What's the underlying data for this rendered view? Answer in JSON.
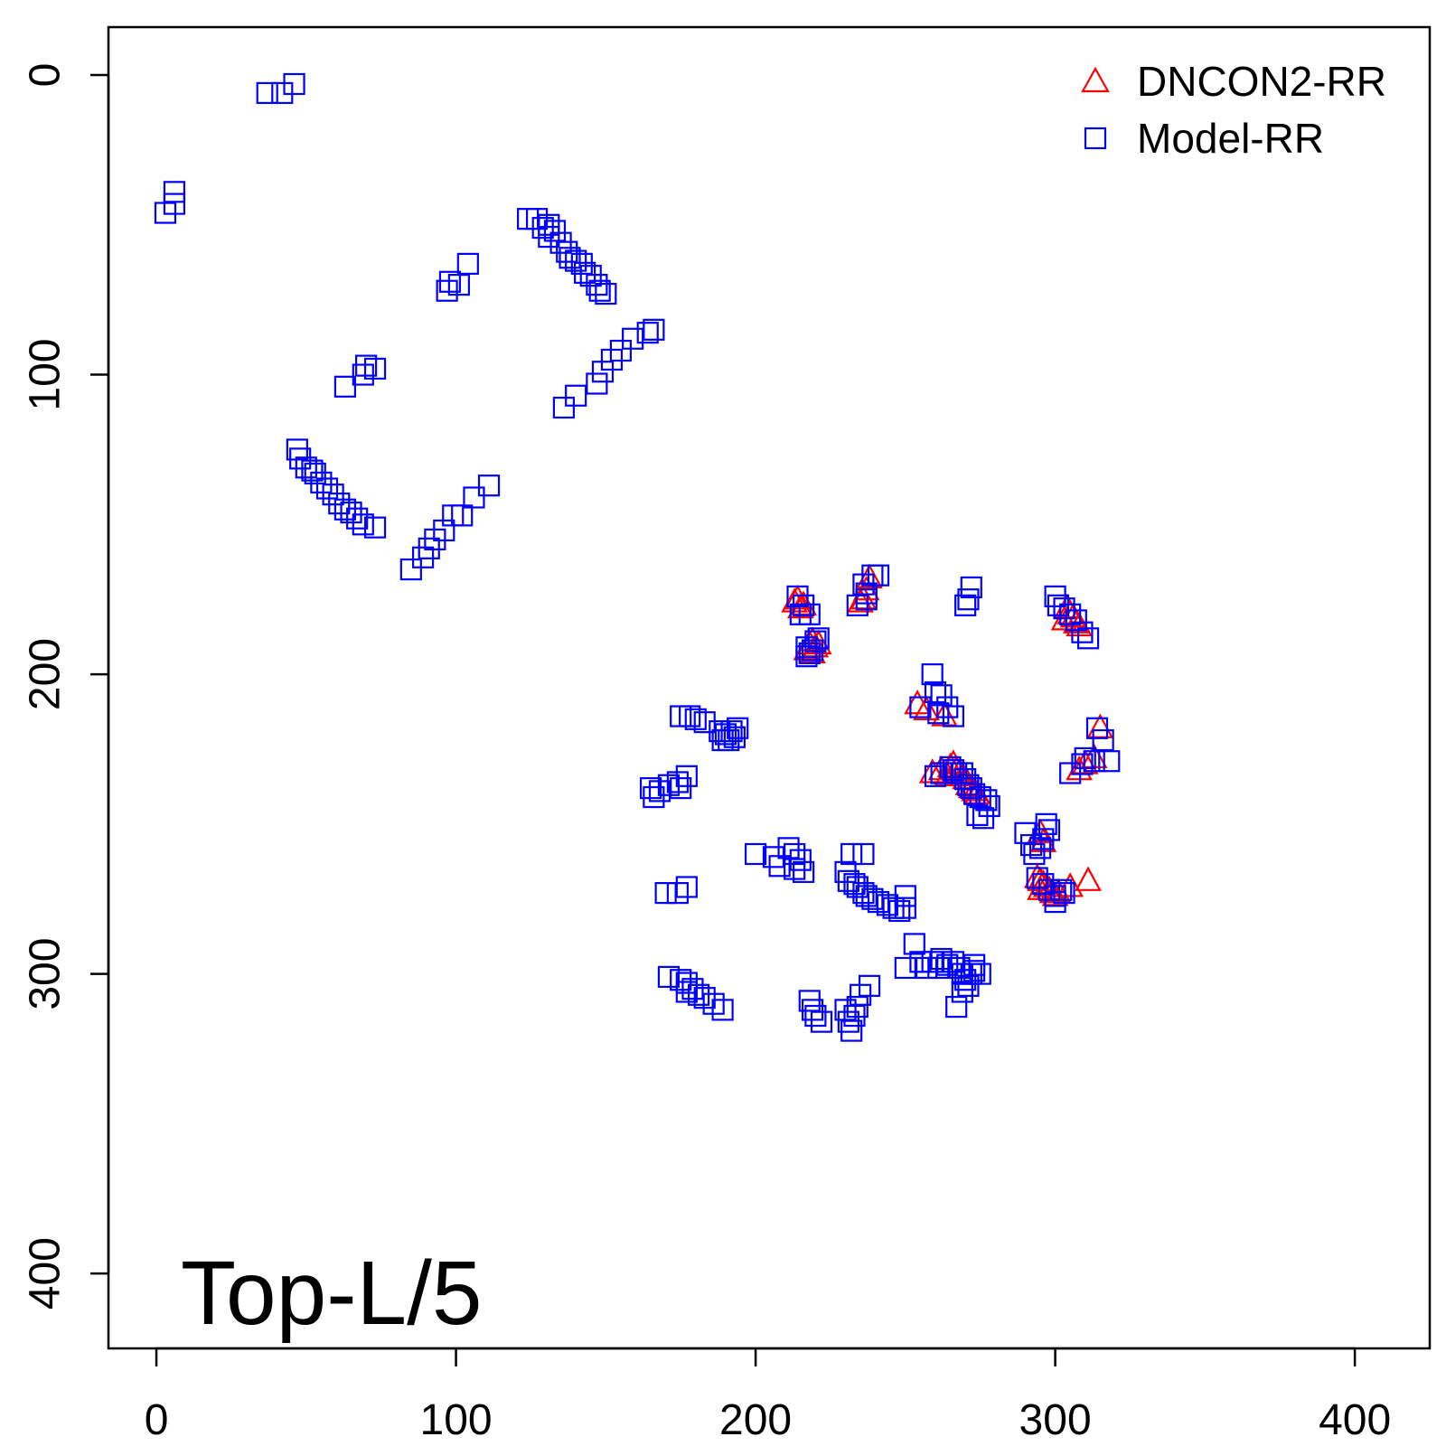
{
  "chart_data": {
    "type": "scatter",
    "annotation": "Top-L/5",
    "xlim": [
      -16,
      425
    ],
    "ylim": [
      425,
      -16
    ],
    "y_reversed": true,
    "x_ticks": [
      0,
      100,
      200,
      300,
      400
    ],
    "y_ticks": [
      0,
      100,
      200,
      300,
      400
    ],
    "grid": false,
    "legend_position": "top-right",
    "series": [
      {
        "name": "DNCON2-RR",
        "marker": "triangle",
        "color": "#ff0000",
        "points": [
          [
            214,
            175
          ],
          [
            215,
            178
          ],
          [
            216,
            177
          ],
          [
            213,
            176
          ],
          [
            217,
            192
          ],
          [
            218,
            190
          ],
          [
            219,
            189
          ],
          [
            220,
            191
          ],
          [
            221,
            190
          ],
          [
            219,
            193
          ],
          [
            236,
            175
          ],
          [
            237,
            172
          ],
          [
            238,
            168
          ],
          [
            235,
            176
          ],
          [
            304,
            178
          ],
          [
            305,
            180
          ],
          [
            306,
            181
          ],
          [
            307,
            183
          ],
          [
            308,
            184
          ],
          [
            303,
            182
          ],
          [
            254,
            210
          ],
          [
            257,
            212
          ],
          [
            263,
            214
          ],
          [
            315,
            218
          ],
          [
            313,
            228
          ],
          [
            310,
            230
          ],
          [
            308,
            232
          ],
          [
            259,
            233
          ],
          [
            262,
            232
          ],
          [
            265,
            231
          ],
          [
            266,
            230
          ],
          [
            267,
            232
          ],
          [
            268,
            233
          ],
          [
            269,
            234
          ],
          [
            270,
            235
          ],
          [
            271,
            237
          ],
          [
            272,
            238
          ],
          [
            273,
            239
          ],
          [
            274,
            240
          ],
          [
            264,
            234
          ],
          [
            295,
            253
          ],
          [
            296,
            256
          ],
          [
            294,
            268
          ],
          [
            295,
            269
          ],
          [
            296,
            270
          ],
          [
            297,
            271
          ],
          [
            298,
            272
          ],
          [
            299,
            273
          ],
          [
            300,
            274
          ],
          [
            301,
            273
          ],
          [
            305,
            271
          ],
          [
            311,
            269
          ],
          [
            295,
            272
          ]
        ]
      },
      {
        "name": "Model-RR",
        "marker": "square",
        "color": "#0000ff",
        "points": [
          [
            37,
            6
          ],
          [
            42,
            6
          ],
          [
            46,
            3
          ],
          [
            3,
            46
          ],
          [
            6,
            39
          ],
          [
            6,
            43
          ],
          [
            98,
            69
          ],
          [
            97,
            72
          ],
          [
            101,
            70
          ],
          [
            104,
            63
          ],
          [
            63,
            104
          ],
          [
            69,
            100
          ],
          [
            73,
            98
          ],
          [
            70,
            97
          ],
          [
            124,
            48
          ],
          [
            127,
            48
          ],
          [
            129,
            51
          ],
          [
            131,
            50
          ],
          [
            131,
            54
          ],
          [
            133,
            52
          ],
          [
            135,
            56
          ],
          [
            137,
            59
          ],
          [
            138,
            61
          ],
          [
            140,
            62
          ],
          [
            142,
            63
          ],
          [
            143,
            66
          ],
          [
            145,
            67
          ],
          [
            147,
            70
          ],
          [
            148,
            72
          ],
          [
            150,
            73
          ],
          [
            136,
            111
          ],
          [
            140,
            107
          ],
          [
            147,
            103
          ],
          [
            149,
            99
          ],
          [
            152,
            95
          ],
          [
            155,
            92
          ],
          [
            159,
            88
          ],
          [
            164,
            86
          ],
          [
            166,
            85
          ],
          [
            47,
            125
          ],
          [
            48,
            128
          ],
          [
            50,
            131
          ],
          [
            52,
            132
          ],
          [
            53,
            133
          ],
          [
            55,
            136
          ],
          [
            57,
            138
          ],
          [
            59,
            140
          ],
          [
            61,
            143
          ],
          [
            63,
            145
          ],
          [
            65,
            146
          ],
          [
            67,
            148
          ],
          [
            69,
            150
          ],
          [
            73,
            151
          ],
          [
            85,
            165
          ],
          [
            89,
            161
          ],
          [
            91,
            158
          ],
          [
            93,
            155
          ],
          [
            96,
            152
          ],
          [
            99,
            147
          ],
          [
            102,
            147
          ],
          [
            106,
            141
          ],
          [
            111,
            137
          ],
          [
            214,
            174
          ],
          [
            216,
            177
          ],
          [
            215,
            180
          ],
          [
            218,
            180
          ],
          [
            217,
            191
          ],
          [
            218,
            193
          ],
          [
            220,
            189
          ],
          [
            221,
            188
          ],
          [
            217,
            194
          ],
          [
            219,
            192
          ],
          [
            234,
            177
          ],
          [
            237,
            175
          ],
          [
            236,
            170
          ],
          [
            239,
            167
          ],
          [
            241,
            167
          ],
          [
            237,
            173
          ],
          [
            272,
            171
          ],
          [
            271,
            175
          ],
          [
            270,
            177
          ],
          [
            300,
            174
          ],
          [
            301,
            177
          ],
          [
            303,
            178
          ],
          [
            305,
            180
          ],
          [
            307,
            182
          ],
          [
            309,
            186
          ],
          [
            311,
            188
          ],
          [
            259,
            200
          ],
          [
            260,
            206
          ],
          [
            262,
            207
          ],
          [
            264,
            211
          ],
          [
            266,
            214
          ],
          [
            261,
            213
          ],
          [
            255,
            211
          ],
          [
            175,
            214
          ],
          [
            178,
            214
          ],
          [
            180,
            215
          ],
          [
            183,
            216
          ],
          [
            188,
            219
          ],
          [
            190,
            220
          ],
          [
            192,
            219
          ],
          [
            191,
            222
          ],
          [
            193,
            221
          ],
          [
            194,
            218
          ],
          [
            189,
            222
          ],
          [
            165,
            238
          ],
          [
            166,
            241
          ],
          [
            168,
            239
          ],
          [
            171,
            237
          ],
          [
            174,
            236
          ],
          [
            177,
            234
          ],
          [
            175,
            238
          ],
          [
            314,
            218
          ],
          [
            316,
            222
          ],
          [
            310,
            228
          ],
          [
            309,
            230
          ],
          [
            313,
            229
          ],
          [
            318,
            229
          ],
          [
            305,
            233
          ],
          [
            260,
            234
          ],
          [
            262,
            233
          ],
          [
            265,
            231
          ],
          [
            266,
            232
          ],
          [
            267,
            233
          ],
          [
            269,
            233
          ],
          [
            270,
            235
          ],
          [
            271,
            237
          ],
          [
            272,
            238
          ],
          [
            273,
            240
          ],
          [
            275,
            241
          ],
          [
            277,
            242
          ],
          [
            278,
            244
          ],
          [
            274,
            247
          ],
          [
            276,
            248
          ],
          [
            200,
            260
          ],
          [
            206,
            261
          ],
          [
            208,
            264
          ],
          [
            211,
            258
          ],
          [
            213,
            260
          ],
          [
            215,
            262
          ],
          [
            216,
            266
          ],
          [
            213,
            265
          ],
          [
            230,
            266
          ],
          [
            231,
            269
          ],
          [
            233,
            270
          ],
          [
            234,
            271
          ],
          [
            236,
            273
          ],
          [
            237,
            274
          ],
          [
            239,
            275
          ],
          [
            241,
            276
          ],
          [
            244,
            277
          ],
          [
            246,
            278
          ],
          [
            248,
            279
          ],
          [
            250,
            278
          ],
          [
            250,
            274
          ],
          [
            236,
            260
          ],
          [
            232,
            260
          ],
          [
            290,
            253
          ],
          [
            292,
            257
          ],
          [
            293,
            260
          ],
          [
            295,
            258
          ],
          [
            296,
            255
          ],
          [
            297,
            250
          ],
          [
            298,
            252
          ],
          [
            170,
            273
          ],
          [
            174,
            273
          ],
          [
            177,
            271
          ],
          [
            294,
            268
          ],
          [
            296,
            270
          ],
          [
            298,
            272
          ],
          [
            300,
            274
          ],
          [
            302,
            272
          ],
          [
            303,
            273
          ],
          [
            300,
            276
          ],
          [
            250,
            298
          ],
          [
            253,
            290
          ],
          [
            255,
            296
          ],
          [
            257,
            298
          ],
          [
            259,
            296
          ],
          [
            261,
            298
          ],
          [
            262,
            295
          ],
          [
            264,
            297
          ],
          [
            266,
            296
          ],
          [
            268,
            298
          ],
          [
            269,
            300
          ],
          [
            270,
            302
          ],
          [
            271,
            304
          ],
          [
            272,
            300
          ],
          [
            273,
            299
          ],
          [
            275,
            300
          ],
          [
            273,
            297
          ],
          [
            267,
            311
          ],
          [
            269,
            306
          ],
          [
            171,
            301
          ],
          [
            175,
            302
          ],
          [
            177,
            303
          ],
          [
            179,
            305
          ],
          [
            181,
            307
          ],
          [
            183,
            308
          ],
          [
            186,
            310
          ],
          [
            189,
            312
          ],
          [
            177,
            306
          ],
          [
            218,
            309
          ],
          [
            219,
            312
          ],
          [
            220,
            314
          ],
          [
            222,
            316
          ],
          [
            230,
            312
          ],
          [
            231,
            316
          ],
          [
            232,
            319
          ],
          [
            233,
            314
          ],
          [
            234,
            311
          ],
          [
            235,
            307
          ],
          [
            238,
            304
          ]
        ]
      }
    ]
  }
}
